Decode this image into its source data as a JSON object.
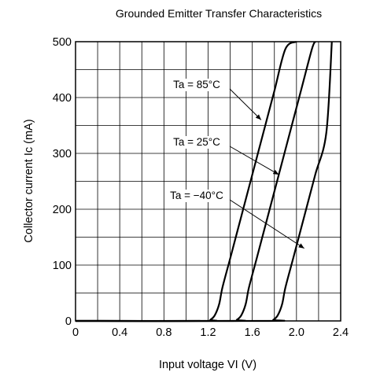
{
  "chart_data": {
    "type": "line",
    "title": "Grounded Emitter Transfer Characteristics",
    "xlabel": "Input voltage  VI (V)",
    "ylabel": "Collector current  Ic (mA)",
    "xlim": [
      0,
      2.4
    ],
    "ylim": [
      0,
      500
    ],
    "x_ticks": [
      "0",
      "0.4",
      "0.8",
      "1.2",
      "1.6",
      "2.0",
      "2.4"
    ],
    "y_ticks": [
      "0",
      "100",
      "200",
      "300",
      "400",
      "500"
    ],
    "grid": true,
    "series": [
      {
        "name": "Ta = 85°C",
        "x": [
          0,
          1.18,
          1.22,
          1.26,
          1.3,
          1.33,
          1.4,
          1.5,
          1.6,
          1.7,
          1.8,
          1.9,
          2.0
        ],
        "y": [
          0,
          0,
          2,
          10,
          30,
          60,
          112,
          187,
          262,
          337,
          412,
          487,
          500
        ]
      },
      {
        "name": "Ta = 25°C",
        "x": [
          0,
          1.42,
          1.46,
          1.5,
          1.54,
          1.57,
          1.64,
          1.74,
          1.84,
          1.94,
          2.04,
          2.14,
          2.17
        ],
        "y": [
          0,
          0,
          2,
          10,
          30,
          60,
          112,
          187,
          262,
          337,
          412,
          487,
          500
        ]
      },
      {
        "name": "Ta = −40°C",
        "x": [
          0,
          1.75,
          1.79,
          1.83,
          1.87,
          1.9,
          1.97,
          2.07,
          2.17,
          2.27,
          2.32
        ],
        "y": [
          0,
          0,
          2,
          10,
          30,
          60,
          112,
          187,
          262,
          337,
          500
        ]
      }
    ],
    "annotations": [
      {
        "text": "Ta = 85°C",
        "points_to": [
          1.68,
          360
        ]
      },
      {
        "text": "Ta = 25°C",
        "points_to": [
          1.84,
          262
        ]
      },
      {
        "text": "Ta = −40°C",
        "points_to": [
          2.07,
          130
        ]
      }
    ]
  }
}
